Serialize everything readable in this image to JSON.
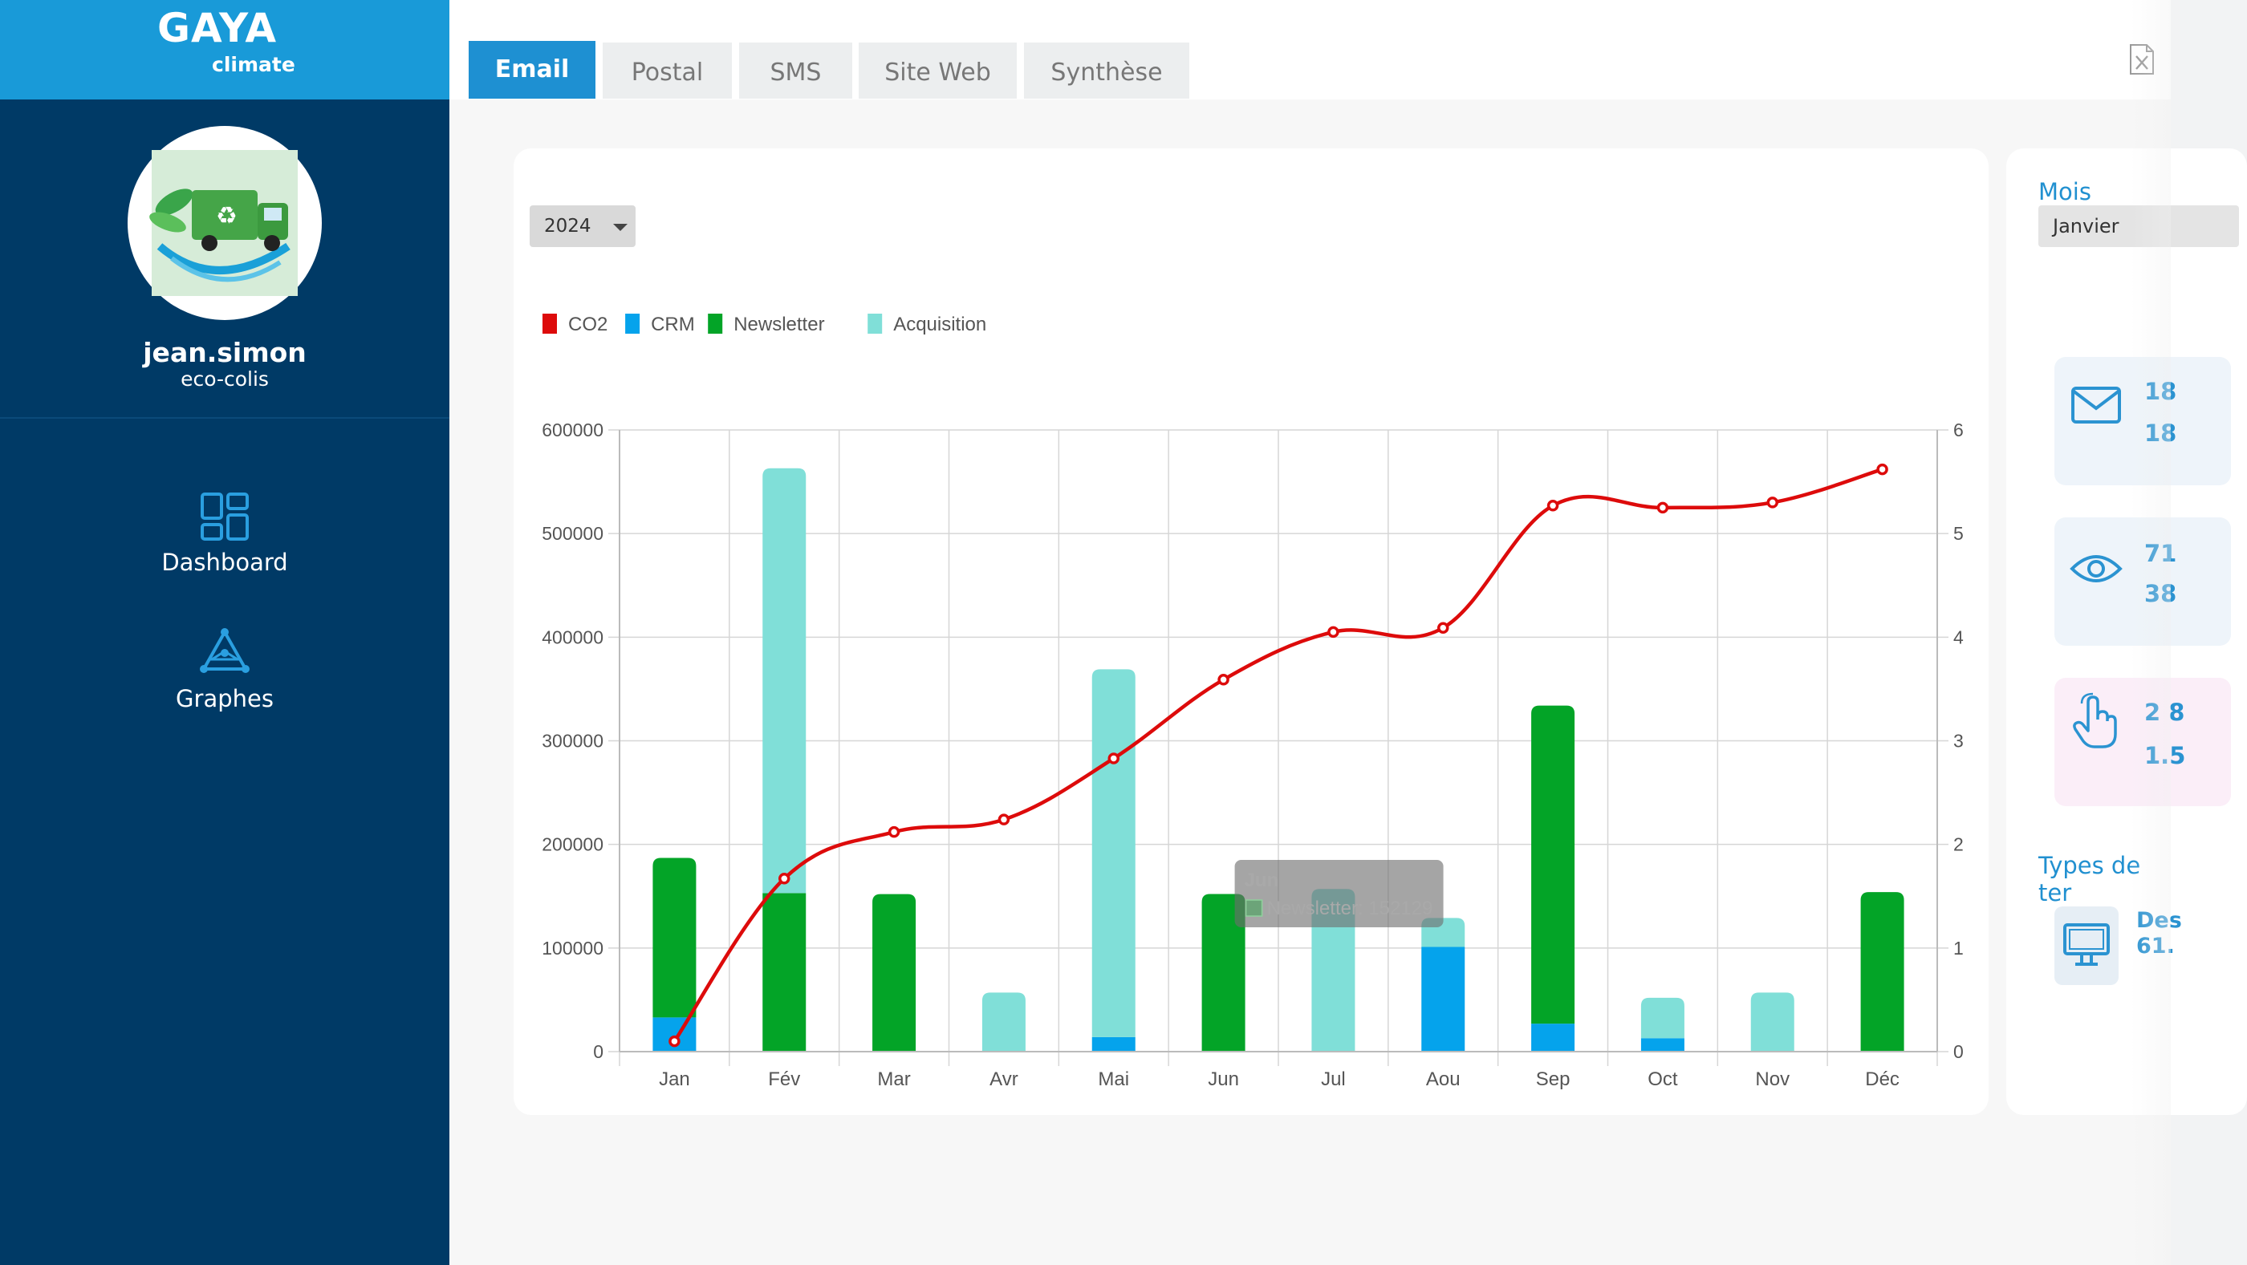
{
  "brand": {
    "name": "GAYA",
    "tagline": "climate"
  },
  "user": {
    "name": "jean.simon",
    "org": "eco-colis"
  },
  "nav": [
    {
      "label": "Dashboard",
      "icon": "dashboard-icon"
    },
    {
      "label": "Graphes",
      "icon": "graph-network-icon"
    }
  ],
  "tabs": [
    {
      "label": "Email",
      "active": true
    },
    {
      "label": "Postal",
      "active": false
    },
    {
      "label": "SMS",
      "active": false
    },
    {
      "label": "Site Web",
      "active": false
    },
    {
      "label": "Synthèse",
      "active": false
    }
  ],
  "toolbar": {
    "export_icon": "excel-export-icon"
  },
  "year_select": {
    "value": "2024"
  },
  "chart_data": {
    "type": "bar",
    "stacked": true,
    "categories": [
      "Jan",
      "Fév",
      "Mar",
      "Avr",
      "Mai",
      "Jun",
      "Jul",
      "Aou",
      "Sep",
      "Oct",
      "Nov",
      "Déc"
    ],
    "series": [
      {
        "name": "CRM",
        "color": "#05a3ec",
        "values": [
          33000,
          0,
          0,
          0,
          14000,
          0,
          0,
          101000,
          27000,
          13000,
          0,
          0
        ]
      },
      {
        "name": "Newsletter",
        "color": "#03a427",
        "values": [
          154000,
          153000,
          152000,
          0,
          0,
          152129,
          0,
          0,
          307000,
          0,
          0,
          154000
        ]
      },
      {
        "name": "Acquisition",
        "color": "#80dfd8",
        "values": [
          0,
          410000,
          0,
          57000,
          355000,
          0,
          157000,
          28000,
          0,
          39000,
          57000,
          0
        ]
      }
    ],
    "line_series": {
      "name": "CO2",
      "color": "#dd0b0b",
      "axis": "right",
      "values": [
        0.1,
        1.67,
        2.12,
        2.24,
        2.83,
        3.59,
        4.05,
        4.09,
        5.27,
        5.25,
        5.3,
        5.62
      ]
    },
    "legend": [
      "CO2",
      "CRM",
      "Newsletter",
      "Acquisition"
    ],
    "legend_position": "top-left",
    "y_left": {
      "min": 0,
      "max": 600000,
      "ticks": [
        "0",
        "100000",
        "200000",
        "300000",
        "400000",
        "500000",
        "600000"
      ]
    },
    "y_right": {
      "min": 0,
      "max": 6,
      "ticks": [
        "0",
        "1",
        "2",
        "3",
        "4",
        "5",
        "6"
      ]
    },
    "grid": true,
    "tooltip": {
      "category": "Jun",
      "text": "Newsletter: 152129"
    }
  },
  "right_panel": {
    "mois_label": "Mois",
    "mois_value": "Janvier",
    "stats": [
      {
        "icon": "envelope-icon",
        "line1": "18",
        "line2": "18",
        "bg": "#eef4fa"
      },
      {
        "icon": "eye-icon",
        "line1": "71",
        "line2": "38",
        "bg": "#eef4fa"
      },
      {
        "icon": "click-hand-icon",
        "line1": "2 8",
        "line2": "1.5",
        "bg": "#fbeef8"
      }
    ],
    "types_label": "Types de ter",
    "device": {
      "icon": "desktop-icon",
      "label": "Des",
      "value": "61."
    }
  }
}
